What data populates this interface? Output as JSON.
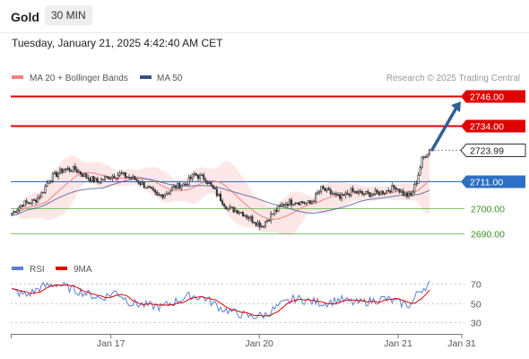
{
  "header": {
    "title": "Gold",
    "interval": "30 MIN"
  },
  "timestamp": "Tuesday, January 21, 2025 4:42:40 AM CET",
  "legend": {
    "ma20_bb": "MA 20 + Bollinger Bands",
    "ma50": "MA 50",
    "rsi": "RSI",
    "ma9": "9MA"
  },
  "attribution": "Research © 2025 Trading Central",
  "colors": {
    "resistance": "#e00000",
    "pivot": "#2d6fc4",
    "support": "#4caf2e",
    "up_candle": "#f5f5f5",
    "down_candle": "#333333",
    "arrow": "#2f5e96",
    "ma20": "#f08080",
    "ma50": "#3a4f8a",
    "bollinger_fill": "#fde6e6",
    "rsi_line": "#5b7fd6",
    "rsi_ma": "#e00000",
    "current_price_bg": "#222222"
  },
  "chart_data": {
    "type": "candlestick",
    "levels": [
      {
        "label": "2746.00",
        "value": 2746.0,
        "kind": "resistance"
      },
      {
        "label": "2734.00",
        "value": 2734.0,
        "kind": "resistance"
      },
      {
        "label": "2723.99",
        "value": 2723.99,
        "kind": "current"
      },
      {
        "label": "2711.00",
        "value": 2711.0,
        "kind": "pivot"
      },
      {
        "label": "2700.00",
        "value": 2700.0,
        "kind": "support"
      },
      {
        "label": "2690.00",
        "value": 2690.0,
        "kind": "support"
      }
    ],
    "y_range": [
      2684,
      2750
    ],
    "rsi_ticks": [
      {
        "label": "70",
        "value": 70
      },
      {
        "label": "50",
        "value": 50
      },
      {
        "label": "30",
        "value": 30
      }
    ],
    "rsi_range": [
      22,
      74
    ],
    "x_labels": [
      {
        "label": "Jan 17",
        "pos": 0.222
      },
      {
        "label": "Jan 20",
        "pos": 0.551
      },
      {
        "label": "Jan 21",
        "pos": 0.859
      },
      {
        "label": "Jan 31",
        "pos": 1.0
      }
    ],
    "close_waypoints": [
      [
        0,
        2698
      ],
      [
        6,
        2702
      ],
      [
        12,
        2703
      ],
      [
        16,
        2706
      ],
      [
        20,
        2712
      ],
      [
        28,
        2716
      ],
      [
        34,
        2716
      ],
      [
        40,
        2713
      ],
      [
        46,
        2711
      ],
      [
        52,
        2713
      ],
      [
        58,
        2714
      ],
      [
        66,
        2712
      ],
      [
        72,
        2709
      ],
      [
        78,
        2705
      ],
      [
        82,
        2706
      ],
      [
        88,
        2709
      ],
      [
        93,
        2710
      ],
      [
        98,
        2714
      ],
      [
        104,
        2712
      ],
      [
        110,
        2706
      ],
      [
        116,
        2700
      ],
      [
        122,
        2699
      ],
      [
        128,
        2696
      ],
      [
        134,
        2693
      ],
      [
        140,
        2698
      ],
      [
        146,
        2702
      ],
      [
        152,
        2703
      ],
      [
        160,
        2702
      ],
      [
        166,
        2708
      ],
      [
        172,
        2706
      ],
      [
        176,
        2704
      ],
      [
        182,
        2707
      ],
      [
        188,
        2706
      ],
      [
        194,
        2706
      ],
      [
        200,
        2707
      ],
      [
        206,
        2709
      ],
      [
        210,
        2706
      ],
      [
        214,
        2705
      ],
      [
        217,
        2711
      ],
      [
        220,
        2720
      ],
      [
        224,
        2724
      ]
    ],
    "candle_count": 225,
    "ma20_end": 2710.5,
    "ma50_end": 2708.5,
    "band_end_width": 6,
    "rsi_waypoints": [
      [
        0,
        63
      ],
      [
        8,
        58
      ],
      [
        16,
        67
      ],
      [
        24,
        70
      ],
      [
        32,
        65
      ],
      [
        40,
        60
      ],
      [
        48,
        55
      ],
      [
        56,
        62
      ],
      [
        64,
        50
      ],
      [
        72,
        48
      ],
      [
        80,
        46
      ],
      [
        88,
        52
      ],
      [
        96,
        58
      ],
      [
        104,
        55
      ],
      [
        112,
        45
      ],
      [
        120,
        40
      ],
      [
        128,
        36
      ],
      [
        136,
        38
      ],
      [
        144,
        48
      ],
      [
        152,
        55
      ],
      [
        160,
        52
      ],
      [
        168,
        50
      ],
      [
        176,
        54
      ],
      [
        184,
        50
      ],
      [
        192,
        52
      ],
      [
        200,
        55
      ],
      [
        208,
        50
      ],
      [
        214,
        48
      ],
      [
        218,
        62
      ],
      [
        224,
        70
      ]
    ],
    "forecast_arrow": {
      "from": 2724,
      "to": 2743
    }
  }
}
